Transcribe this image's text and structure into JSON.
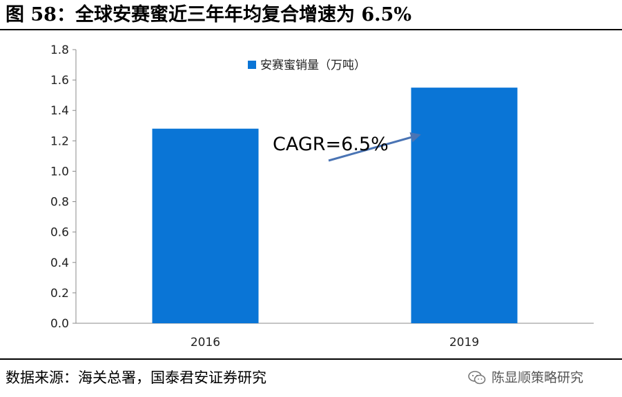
{
  "header": {
    "title": "图 58：全球安赛蜜近三年年均复合增速为 6.5%"
  },
  "footer": {
    "source": "数据来源：海关总署，国泰君安证券研究",
    "watermark": "陈显顺策略研究",
    "watermark_icon": "wechat-icon"
  },
  "chart_data": {
    "type": "bar",
    "categories": [
      "2016",
      "2019"
    ],
    "series": [
      {
        "name": "安赛蜜销量（万吨）",
        "values": [
          1.28,
          1.55
        ],
        "color": "#0A75D6"
      }
    ],
    "title": "",
    "xlabel": "",
    "ylabel": "",
    "ylim": [
      0,
      1.8
    ],
    "yticks": [
      "0.0",
      "0.2",
      "0.4",
      "0.6",
      "0.8",
      "1.0",
      "1.2",
      "1.4",
      "1.6",
      "1.8"
    ],
    "grid": false,
    "legend": "top-center",
    "annotations": [
      {
        "text": "CAGR=6.5%",
        "arrow": "from-2016-to-2019"
      }
    ]
  }
}
